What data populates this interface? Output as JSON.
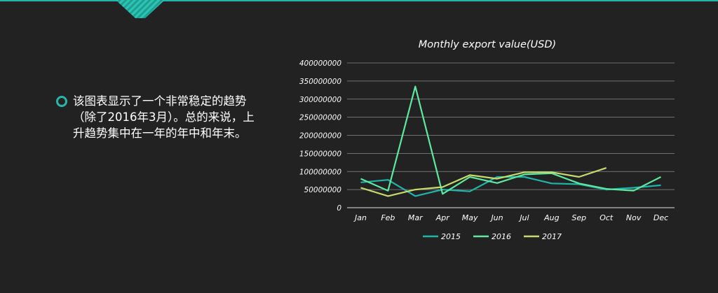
{
  "description": "该图表显示了一个非常稳定的趋势（除了2016年3月）。总的来说，上升趋势集中在一年的年中和年末。",
  "colors": {
    "background": "#222222",
    "accent": "#2bb5aa",
    "gridline": "#8a8a8a",
    "text": "#ffffff"
  },
  "chart_data": {
    "type": "line",
    "title": "Monthly export value(USD)",
    "xlabel": "",
    "ylabel": "",
    "categories": [
      "Jan",
      "Feb",
      "Mar",
      "Apr",
      "May",
      "Jun",
      "Jul",
      "Aug",
      "Sep",
      "Oct",
      "Nov",
      "Dec"
    ],
    "yticks": [
      "0",
      "50000000",
      "100000000",
      "150000000",
      "200000000",
      "250000000",
      "300000000",
      "350000000",
      "400000000"
    ],
    "ylim": [
      0,
      400000000
    ],
    "grid": true,
    "legend": "bottom",
    "series": [
      {
        "name": "2015",
        "color": "#1fb5ad",
        "values": [
          70000000,
          77000000,
          32000000,
          50000000,
          45000000,
          85000000,
          85000000,
          67000000,
          65000000,
          50000000,
          55000000,
          62000000
        ]
      },
      {
        "name": "2016",
        "color": "#5ee8a0",
        "values": [
          80000000,
          47000000,
          335000000,
          38000000,
          85000000,
          68000000,
          92000000,
          95000000,
          67000000,
          52000000,
          47000000,
          85000000
        ]
      },
      {
        "name": "2017",
        "color": "#c5dc6c",
        "values": [
          55000000,
          32000000,
          50000000,
          57000000,
          90000000,
          80000000,
          98000000,
          98000000,
          85000000,
          110000000,
          null,
          null
        ]
      }
    ]
  }
}
